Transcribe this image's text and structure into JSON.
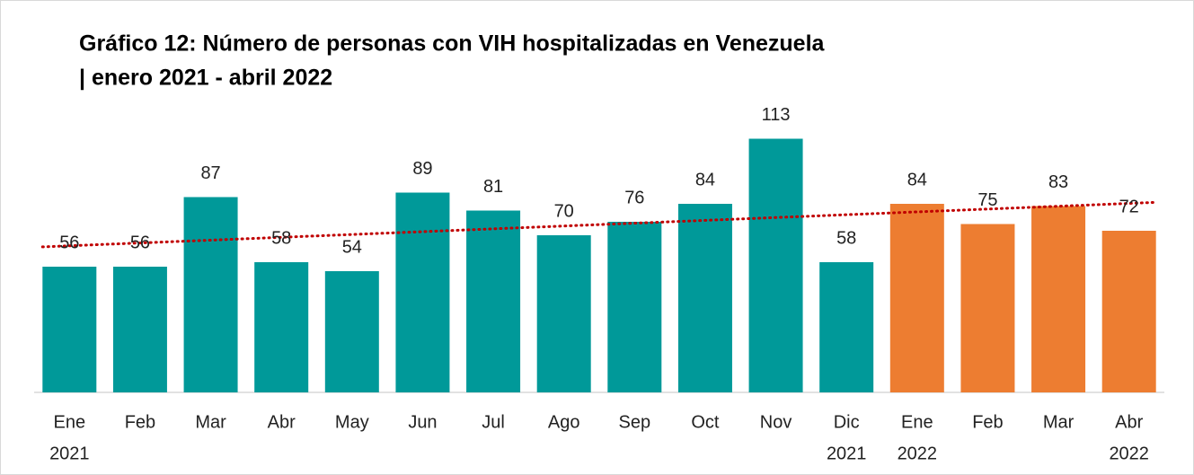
{
  "chart_data": {
    "type": "bar",
    "title": [
      "Gráfico 12: Número de personas con VIH hospitalizadas en Venezuela",
      "| enero 2021 - abril 2022"
    ],
    "categories": [
      [
        "Ene",
        "2021"
      ],
      [
        "Feb"
      ],
      [
        "Mar"
      ],
      [
        "Abr"
      ],
      [
        "May"
      ],
      [
        "Jun"
      ],
      [
        "Jul"
      ],
      [
        "Ago"
      ],
      [
        "Sep"
      ],
      [
        "Oct"
      ],
      [
        "Nov"
      ],
      [
        "Dic",
        "2021"
      ],
      [
        "Ene",
        "2022"
      ],
      [
        "Feb"
      ],
      [
        "Mar"
      ],
      [
        "Abr",
        "2022"
      ]
    ],
    "values": [
      56,
      56,
      87,
      58,
      54,
      89,
      81,
      70,
      76,
      84,
      113,
      58,
      84,
      75,
      83,
      72
    ],
    "colors": [
      "#009999",
      "#009999",
      "#009999",
      "#009999",
      "#009999",
      "#009999",
      "#009999",
      "#009999",
      "#009999",
      "#009999",
      "#009999",
      "#009999",
      "#ed7d31",
      "#ed7d31",
      "#ed7d31",
      "#ed7d31"
    ],
    "ylim": [
      0,
      120
    ],
    "trendline": {
      "type": "linear",
      "color": "#c00000",
      "style": "dotted"
    }
  }
}
